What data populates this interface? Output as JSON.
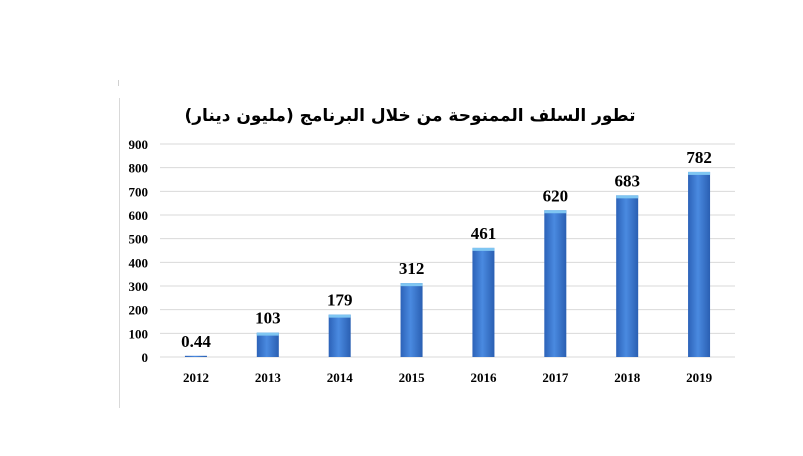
{
  "chart_data": {
    "type": "bar",
    "title": "تطور السلف الممنوحة من خلال البرنامج (مليون دينار)",
    "categories": [
      "2012",
      "2013",
      "2014",
      "2015",
      "2016",
      "2017",
      "2018",
      "2019"
    ],
    "values": [
      0.44,
      103,
      179,
      312,
      461,
      620,
      683,
      782
    ],
    "data_labels": [
      "0.44",
      "103",
      "179",
      "312",
      "461",
      "620",
      "683",
      "782"
    ],
    "yticks": [
      "0",
      "100",
      "200",
      "300",
      "400",
      "500",
      "600",
      "700",
      "800",
      "900"
    ],
    "ylim": [
      0,
      900
    ],
    "grid": true,
    "bar_color": "#3a78d4",
    "bar_top_color": "#7fc6f2"
  }
}
